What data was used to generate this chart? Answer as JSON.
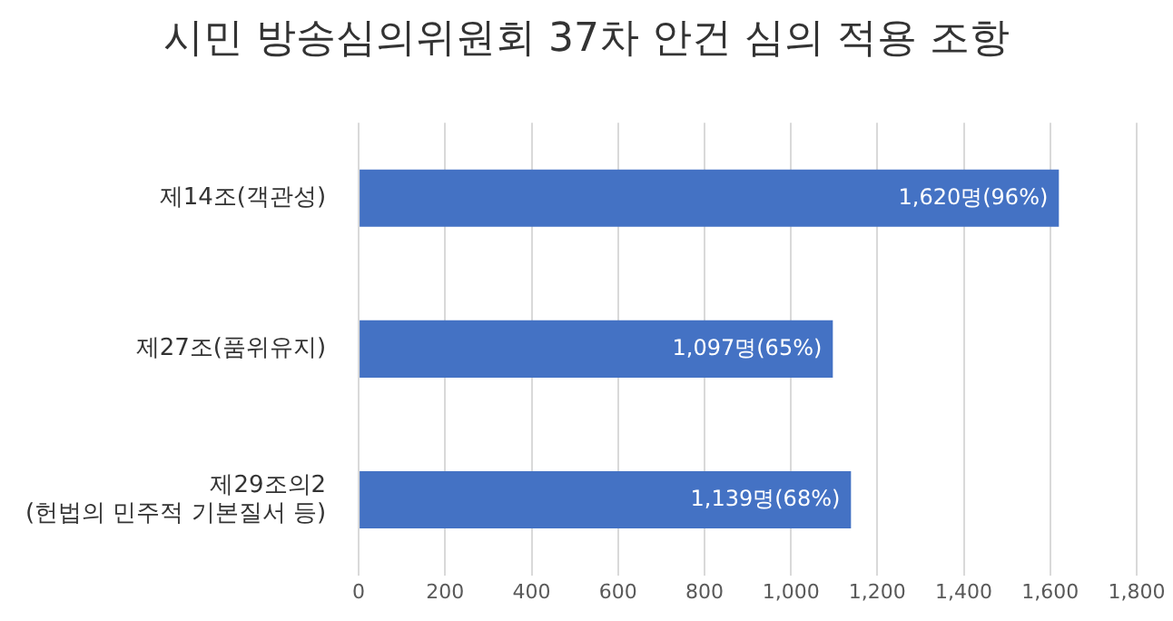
{
  "chart_data": {
    "type": "bar",
    "orientation": "horizontal",
    "title": "시민 방송심의위원회 37차 안건 심의 적용 조항",
    "categories": [
      "제14조(객관성)",
      "제27조(품위유지)",
      "제29조의2\n(헌법의 민주적 기본질서 등)"
    ],
    "values": [
      1620,
      1097,
      1139
    ],
    "color": "#4472c4",
    "value_labels": [
      "1,620명(96%)",
      "1,097명(65%)",
      "1,139명(68%)"
    ],
    "xlim": [
      0,
      1800
    ],
    "xticks": [
      0,
      {
        "value": 200,
        "label": "200"
      },
      {
        "value": 400,
        "label": "400"
      },
      {
        "value": 600,
        "label": "600"
      },
      {
        "value": 800,
        "label": "800"
      },
      {
        "value": 1000,
        "label": "1,000"
      },
      {
        "value": 1200,
        "label": "1,200"
      },
      {
        "value": 1400,
        "label": "1,400"
      },
      {
        "value": 1600,
        "label": "1,600"
      },
      {
        "value": 1800,
        "label": "1,800"
      }
    ],
    "grid": "x",
    "legend": false
  }
}
